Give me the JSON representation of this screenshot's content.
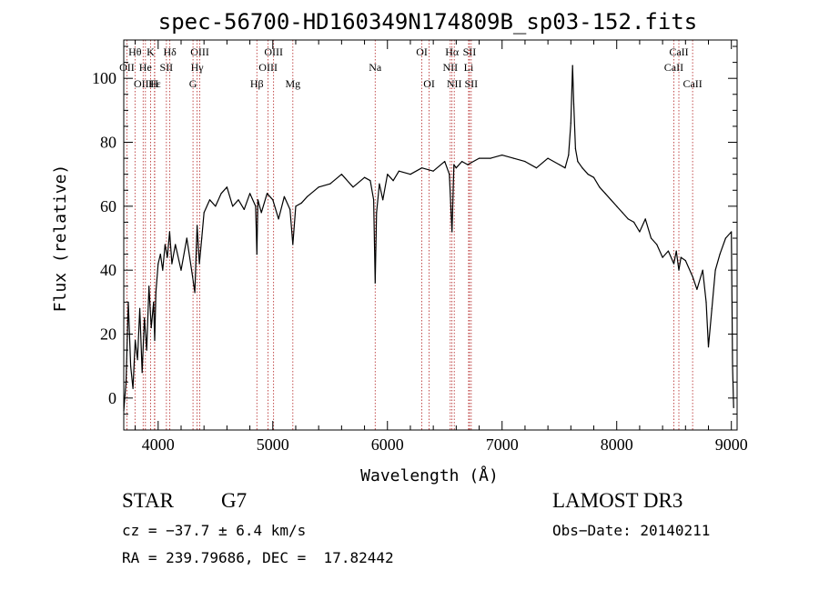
{
  "chart_data": {
    "type": "line",
    "title": "spec-56700-HD160349N174809B_sp03-152.fits",
    "xlabel": "Wavelength (Å)",
    "ylabel": "Flux (relative)",
    "xlim": [
      3700,
      9050
    ],
    "ylim": [
      -10,
      112
    ],
    "xticks": [
      4000,
      5000,
      6000,
      7000,
      8000,
      9000
    ],
    "yticks": [
      0,
      20,
      40,
      60,
      80,
      100
    ],
    "grid": false,
    "series": [
      {
        "x": [
          3700,
          3720,
          3740,
          3760,
          3780,
          3800,
          3820,
          3840,
          3860,
          3880,
          3900,
          3920,
          3940,
          3960,
          3970,
          3980,
          4000,
          4020,
          4040,
          4060,
          4080,
          4100,
          4120,
          4150,
          4200,
          4250,
          4300,
          4320,
          4340,
          4360,
          4380,
          4400,
          4450,
          4500,
          4550,
          4600,
          4650,
          4700,
          4750,
          4800,
          4850,
          4861,
          4870,
          4900,
          4950,
          5000,
          5050,
          5100,
          5150,
          5175,
          5200,
          5250,
          5300,
          5400,
          5500,
          5600,
          5700,
          5800,
          5850,
          5880,
          5893,
          5905,
          5930,
          5960,
          6000,
          6050,
          6100,
          6200,
          6300,
          6400,
          6500,
          6540,
          6563,
          6580,
          6600,
          6650,
          6700,
          6800,
          6900,
          7000,
          7100,
          7200,
          7300,
          7400,
          7500,
          7550,
          7580,
          7600,
          7615,
          7625,
          7640,
          7660,
          7700,
          7750,
          7800,
          7850,
          7900,
          7950,
          8000,
          8050,
          8100,
          8150,
          8200,
          8250,
          8300,
          8350,
          8400,
          8450,
          8498,
          8520,
          8542,
          8560,
          8600,
          8662,
          8700,
          8750,
          8780,
          8800,
          8830,
          8860,
          8900,
          8950,
          9000,
          9010,
          9020
        ],
        "y": [
          -4,
          5,
          30,
          10,
          3,
          18,
          12,
          28,
          8,
          25,
          15,
          35,
          22,
          30,
          18,
          33,
          42,
          45,
          40,
          48,
          44,
          52,
          42,
          48,
          40,
          50,
          38,
          33,
          54,
          42,
          50,
          58,
          62,
          60,
          64,
          66,
          60,
          62,
          59,
          64,
          60,
          45,
          62,
          58,
          64,
          62,
          56,
          63,
          59,
          48,
          60,
          61,
          63,
          66,
          67,
          70,
          66,
          69,
          68,
          62,
          36,
          58,
          67,
          62,
          70,
          68,
          71,
          70,
          72,
          71,
          74,
          70,
          52,
          73,
          72,
          74,
          73,
          75,
          75,
          76,
          75,
          74,
          72,
          75,
          73,
          72,
          76,
          86,
          104,
          92,
          78,
          74,
          72,
          70,
          69,
          66,
          64,
          62,
          60,
          58,
          56,
          55,
          52,
          56,
          50,
          48,
          44,
          46,
          42,
          46,
          40,
          44,
          43,
          38,
          34,
          40,
          30,
          16,
          28,
          40,
          45,
          50,
          52,
          10,
          -3
        ]
      }
    ],
    "lines": [
      {
        "label": "Hθ",
        "wl": 3798,
        "row": 0
      },
      {
        "label": "OII",
        "wl": 3727,
        "row": 1
      },
      {
        "label": "OIII",
        "wl": 3869,
        "row": 2
      },
      {
        "label": "K",
        "wl": 3934,
        "row": 0
      },
      {
        "label": "He",
        "wl": 3889,
        "row": 1
      },
      {
        "label": "Hε",
        "wl": 3970,
        "row": 2
      },
      {
        "label": "Hδ",
        "wl": 4102,
        "row": 0
      },
      {
        "label": "SII",
        "wl": 4072,
        "row": 1
      },
      {
        "label": "H",
        "wl": 3968,
        "row": 2
      },
      {
        "label": "OIII",
        "wl": 4363,
        "row": 0
      },
      {
        "label": "Hγ",
        "wl": 4340,
        "row": 1
      },
      {
        "label": "G",
        "wl": 4304,
        "row": 2
      },
      {
        "label": "Hβ",
        "wl": 4861,
        "row": 2
      },
      {
        "label": "OIII",
        "wl": 5007,
        "row": 0
      },
      {
        "label": "OIII",
        "wl": 4959,
        "row": 1
      },
      {
        "label": "Mg",
        "wl": 5175,
        "row": 2
      },
      {
        "label": "Na",
        "wl": 5893,
        "row": 1
      },
      {
        "label": "OI",
        "wl": 6300,
        "row": 0
      },
      {
        "label": "OI",
        "wl": 6364,
        "row": 2
      },
      {
        "label": "Hα",
        "wl": 6563,
        "row": 0
      },
      {
        "label": "NII",
        "wl": 6548,
        "row": 1
      },
      {
        "label": "NII",
        "wl": 6583,
        "row": 2
      },
      {
        "label": "SII",
        "wl": 6716,
        "row": 0
      },
      {
        "label": "Li",
        "wl": 6708,
        "row": 1
      },
      {
        "label": "SII",
        "wl": 6731,
        "row": 2
      },
      {
        "label": "CaII",
        "wl": 8542,
        "row": 0
      },
      {
        "label": "CaII",
        "wl": 8498,
        "row": 1
      },
      {
        "label": "CaII",
        "wl": 8662,
        "row": 2
      }
    ],
    "colors": {
      "spectrum": "#000000",
      "marker_lines": "#b22222"
    }
  },
  "footer": {
    "class": "STAR",
    "subclass": "G7",
    "survey": "LAMOST DR3",
    "cz": "cz = −37.7 ± 6.4 km/s",
    "obs_date": "Obs−Date: 20140211",
    "coords": "RA = 239.79686, DEC =  17.82442"
  }
}
